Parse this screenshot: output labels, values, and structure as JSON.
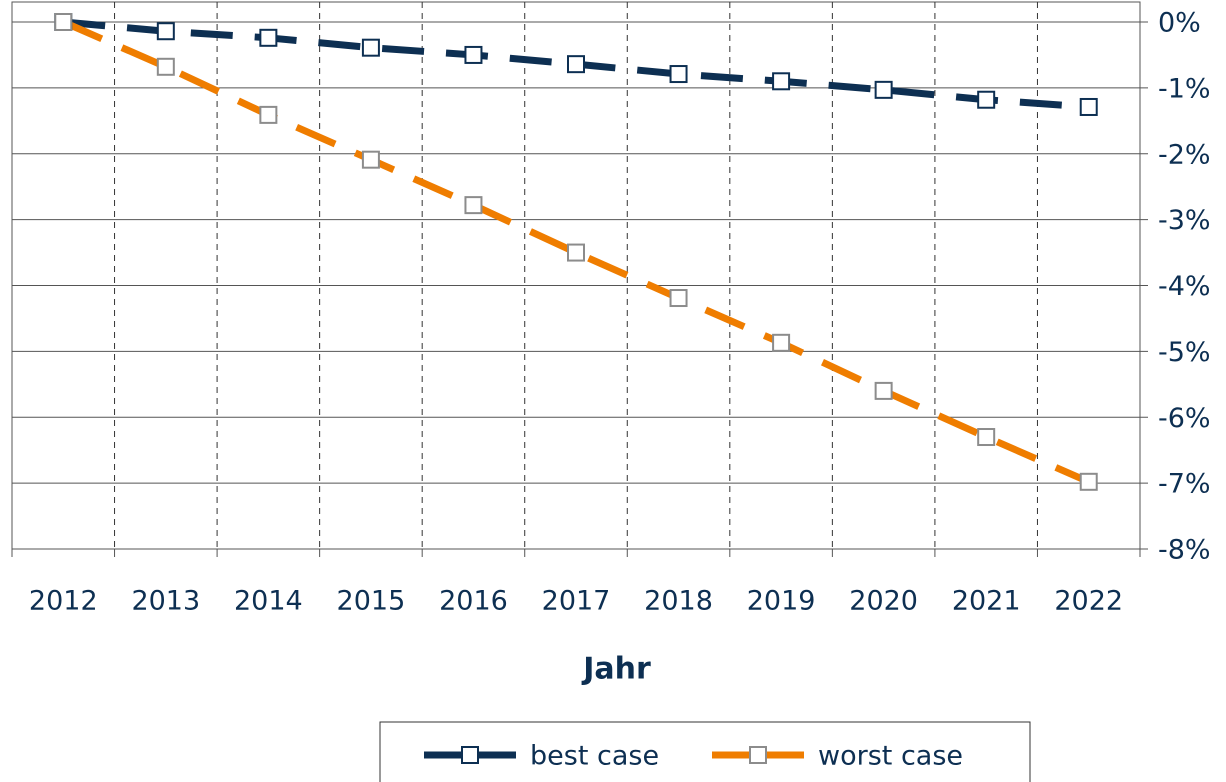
{
  "chart_data": {
    "type": "line",
    "xlabel": "Jahr",
    "categories": [
      "2012",
      "2013",
      "2014",
      "2015",
      "2016",
      "2017",
      "2018",
      "2019",
      "2020",
      "2021",
      "2022"
    ],
    "series": [
      {
        "name": "best case",
        "color": "#0d2f52",
        "marker_edge_color": "#0d2f52",
        "values": [
          0,
          -0.14,
          -0.24,
          -0.39,
          -0.5,
          -0.64,
          -0.79,
          -0.9,
          -1.03,
          -1.18,
          -1.29
        ]
      },
      {
        "name": "worst case",
        "color": "#ef7d00",
        "marker_edge_color": "#8c8c8c",
        "values": [
          0,
          -0.68,
          -1.41,
          -2.09,
          -2.78,
          -3.5,
          -4.19,
          -4.87,
          -5.6,
          -6.3,
          -6.98
        ]
      }
    ],
    "ylim": [
      -8,
      0
    ],
    "yticks": [
      {
        "value": 0,
        "label": "0%"
      },
      {
        "value": -1,
        "label": "-1%"
      },
      {
        "value": -2,
        "label": "-2%"
      },
      {
        "value": -3,
        "label": "-3%"
      },
      {
        "value": -4,
        "label": "-4%"
      },
      {
        "value": -5,
        "label": "-5%"
      },
      {
        "value": -6,
        "label": "-6%"
      },
      {
        "value": -7,
        "label": "-7%"
      },
      {
        "value": -8,
        "label": "-8%"
      }
    ],
    "y_axis_side": "right",
    "grid": true,
    "legend": "bottom"
  }
}
